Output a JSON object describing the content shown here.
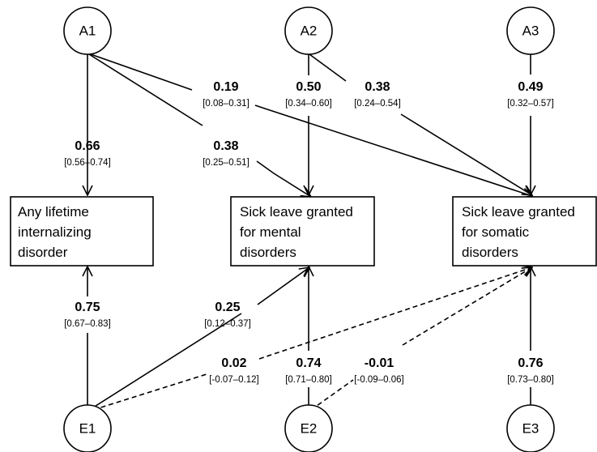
{
  "latent_nodes": {
    "a1": "A1",
    "a2": "A2",
    "a3": "A3",
    "e1": "E1",
    "e2": "E2",
    "e3": "E3"
  },
  "observed_boxes": {
    "internalizing": [
      "Any lifetime",
      "internalizing",
      "disorder"
    ],
    "mental_sick_leave": [
      "Sick leave granted",
      "for mental",
      "disorders"
    ],
    "somatic_sick_leave": [
      "Sick leave granted",
      "for somatic",
      "disorders"
    ]
  },
  "paths": {
    "a1_internalizing": {
      "coef": "0.66",
      "ci": "[0.56–0.74]"
    },
    "a1_mental": {
      "coef": "0.38",
      "ci": "[0.25–0.51]"
    },
    "a1_somatic": {
      "coef": "0.19",
      "ci": "[0.08–0.31]"
    },
    "a2_mental": {
      "coef": "0.50",
      "ci": "[0.34–0.60]"
    },
    "a2_somatic": {
      "coef": "0.38",
      "ci": "[0.24–0.54]"
    },
    "a3_somatic": {
      "coef": "0.49",
      "ci": "[0.32–0.57]"
    },
    "e1_internalizing": {
      "coef": "0.75",
      "ci": "[0.67–0.83]"
    },
    "e1_mental": {
      "coef": "0.25",
      "ci": "[0.12–0.37]"
    },
    "e1_somatic": {
      "coef": "0.02",
      "ci": "[-0.07–0.12]"
    },
    "e2_mental": {
      "coef": "0.74",
      "ci": "[0.71–0.80]"
    },
    "e2_somatic": {
      "coef": "-0.01",
      "ci": "[-0.09–0.06]"
    },
    "e3_somatic": {
      "coef": "0.76",
      "ci": "[0.73–0.80]"
    }
  }
}
